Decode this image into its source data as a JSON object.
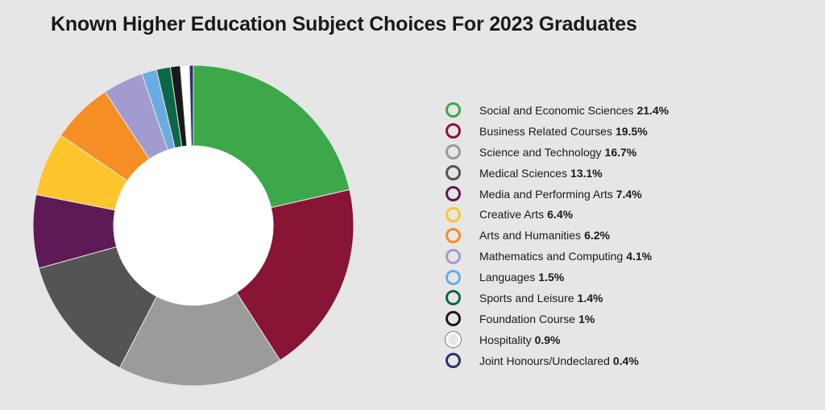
{
  "title": "Known Higher Education Subject Choices For 2023 Graduates",
  "chart_data": {
    "type": "pie",
    "donut": true,
    "legend_position": "right",
    "slices": [
      {
        "label": "Social and Economic Sciences",
        "value": 21.4,
        "value_label": "21.4%",
        "color": "#3ca84a"
      },
      {
        "label": "Business Related Courses",
        "value": 19.5,
        "value_label": "19.5%",
        "color": "#881534"
      },
      {
        "label": "Science and Technology",
        "value": 16.7,
        "value_label": "16.7%",
        "color": "#9b9b9b"
      },
      {
        "label": "Medical Sciences",
        "value": 13.1,
        "value_label": "13.1%",
        "color": "#545454"
      },
      {
        "label": "Media and Performing Arts",
        "value": 7.4,
        "value_label": "7.4%",
        "color": "#5e1a56"
      },
      {
        "label": "Creative Arts",
        "value": 6.4,
        "value_label": "6.4%",
        "color": "#fec52c"
      },
      {
        "label": "Arts and Humanities",
        "value": 6.2,
        "value_label": "6.2%",
        "color": "#f58e24"
      },
      {
        "label": "Mathematics and Computing",
        "value": 4.1,
        "value_label": "4.1%",
        "color": "#a29bcf"
      },
      {
        "label": "Languages",
        "value": 1.5,
        "value_label": "1.5%",
        "color": "#6aace0"
      },
      {
        "label": "Sports and Leisure",
        "value": 1.4,
        "value_label": "1.4%",
        "color": "#0c6648"
      },
      {
        "label": "Foundation Course",
        "value": 1,
        "value_label": "1%",
        "color": "#1a1a1a"
      },
      {
        "label": "Hospitality",
        "value": 0.9,
        "value_label": "0.9%",
        "color": "#ffffff"
      },
      {
        "label": "Joint Honours/Undeclared",
        "value": 0.4,
        "value_label": "0.4%",
        "color": "#27336d"
      }
    ]
  }
}
